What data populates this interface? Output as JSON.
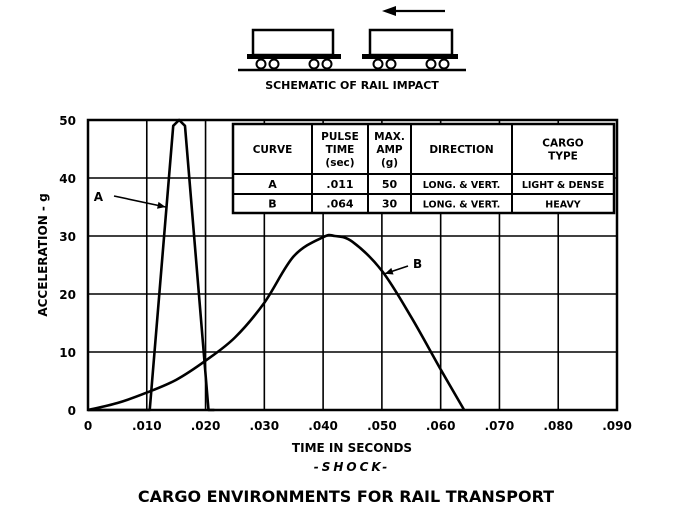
{
  "chart_data": {
    "type": "line",
    "title": "CARGO ENVIRONMENTS FOR RAIL TRANSPORT",
    "subtitle": "-SHOCK-",
    "xlabel": "TIME IN SECONDS",
    "ylabel": "ACCELERATION - g",
    "xlim": [
      0,
      0.09
    ],
    "ylim": [
      0,
      50
    ],
    "x_ticks": [
      0,
      0.01,
      0.02,
      0.03,
      0.04,
      0.05,
      0.06,
      0.07,
      0.08,
      0.09
    ],
    "x_tick_labels": [
      "0",
      ".010",
      ".020",
      ".030",
      ".040",
      ".050",
      ".060",
      ".070",
      ".080",
      ".090"
    ],
    "y_ticks": [
      0,
      10,
      20,
      30,
      40,
      50
    ],
    "y_tick_labels": [
      "0",
      "10",
      "20",
      "30",
      "40",
      "50"
    ],
    "grid": true,
    "series": [
      {
        "name": "A",
        "x": [
          0,
          0.0105,
          0.0145,
          0.0155,
          0.0165,
          0.0205,
          0.0215
        ],
        "y": [
          0,
          0,
          49,
          50,
          49,
          0,
          0
        ]
      },
      {
        "name": "B",
        "x": [
          0,
          0.005,
          0.01,
          0.015,
          0.02,
          0.025,
          0.03,
          0.035,
          0.04,
          0.042,
          0.045,
          0.05,
          0.055,
          0.06,
          0.064
        ],
        "y": [
          0,
          1.2,
          3,
          5.2,
          8.5,
          12.5,
          18.5,
          26.5,
          29.8,
          30,
          29,
          24,
          16,
          7,
          0
        ]
      }
    ],
    "annotations": [
      {
        "text": "A",
        "series": "A"
      },
      {
        "text": "B",
        "series": "B"
      }
    ],
    "table": {
      "headers": [
        "CURVE",
        "PULSE TIME (sec)",
        "MAX. AMP (g)",
        "DIRECTION",
        "CARGO TYPE"
      ],
      "rows": [
        [
          "A",
          ".011",
          "50",
          "LONG. & VERT.",
          "LIGHT & DENSE"
        ],
        [
          "B",
          ".064",
          "30",
          "LONG. & VERT.",
          "HEAVY"
        ]
      ]
    }
  },
  "schematic": {
    "caption": "SCHEMATIC OF RAIL IMPACT",
    "icons": [
      "rail-car-left-icon",
      "rail-car-right-icon",
      "arrow-left-icon",
      "track-icon"
    ]
  }
}
